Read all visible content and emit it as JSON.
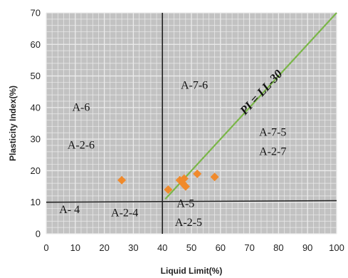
{
  "chart_data": {
    "type": "scatter",
    "title": "",
    "xlabel": "Liquid Limit(%)",
    "ylabel": "Plasticity Index(%)",
    "xlim": [
      0,
      100
    ],
    "ylim": [
      0,
      70
    ],
    "x_ticks": [
      "0",
      "10",
      "20",
      "30",
      "40",
      "50",
      "60",
      "70",
      "80",
      "90",
      "100"
    ],
    "y_ticks": [
      "0",
      "10",
      "20",
      "30",
      "40",
      "50",
      "60",
      "70"
    ],
    "grid": true,
    "points": [
      {
        "x": 26,
        "y": 17
      },
      {
        "x": 42,
        "y": 14
      },
      {
        "x": 46,
        "y": 17
      },
      {
        "x": 47,
        "y": 16
      },
      {
        "x": 47.5,
        "y": 17.5
      },
      {
        "x": 48,
        "y": 15
      },
      {
        "x": 52,
        "y": 19
      },
      {
        "x": 58,
        "y": 18
      }
    ],
    "reference_lines": [
      {
        "label": "PI = LL-30",
        "x1": 41,
        "y1": 11,
        "x2": 100,
        "y2": 70
      },
      {
        "label": "",
        "x1": 40,
        "y1": 0,
        "x2": 40,
        "y2": 70
      },
      {
        "label": "",
        "x1": 0,
        "y1": 10,
        "x2": 100,
        "y2": 10.5
      }
    ],
    "zone_labels": [
      {
        "text": "A-6",
        "x": 12,
        "y": 39
      },
      {
        "text": "A-2-6",
        "x": 12,
        "y": 27
      },
      {
        "text": "A-7-6",
        "x": 51,
        "y": 46
      },
      {
        "text": "A-7-5",
        "x": 78,
        "y": 31
      },
      {
        "text": "A-2-7",
        "x": 78,
        "y": 25
      },
      {
        "text": "A- 4",
        "x": 8,
        "y": 6.5
      },
      {
        "text": "A-2-4",
        "x": 27,
        "y": 5.5
      },
      {
        "text": "A-5",
        "x": 48,
        "y": 8.5
      },
      {
        "text": "A-2-5",
        "x": 49,
        "y": 2.5
      }
    ],
    "colors": {
      "plot_background": "#c2c2c2",
      "grid": "#ececec",
      "points": "#f08a2c",
      "pi_line": "#7ab648",
      "boundary": "#222222"
    }
  }
}
